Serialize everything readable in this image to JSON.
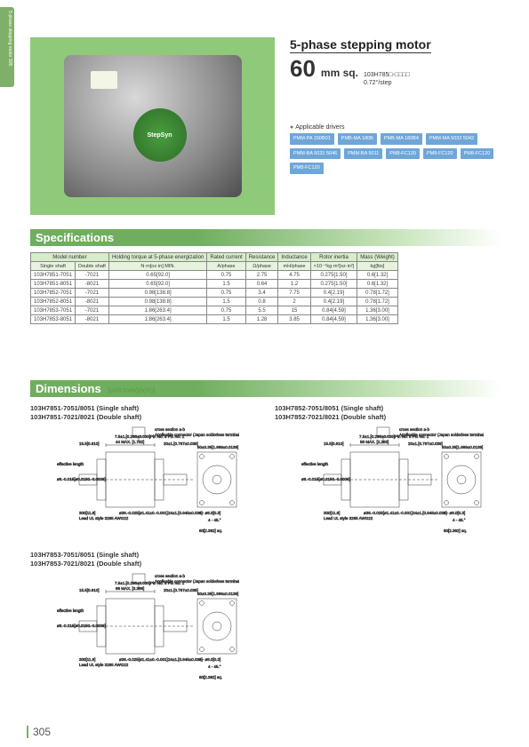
{
  "sideTab": "5-phase stepping motor 305",
  "title": {
    "line1": "5-phase stepping motor",
    "size": "60",
    "unit": "mm sq.",
    "model": "103H785□-□□□□",
    "step": "0.72°/step"
  },
  "drivers": {
    "label": "Applicable drivers",
    "chips": [
      "PMM-PA 150B01",
      "PMB-MA 180B",
      "PMB-MA 180B4",
      "PMM-MA 5032 5042",
      "PMM-BA 5031 5046",
      "PMM-BA 5011",
      "PM8-FC120",
      "PM8-FC120",
      "PM8-FC120",
      "PM8-FC120"
    ]
  },
  "specTable": {
    "head1": [
      "Model number",
      "Holding torque at 5-phase energization",
      "Rated current",
      "Resistance",
      "Inductance",
      "Rotor inertia",
      "Mass (Weight)"
    ],
    "head2": [
      "Single shaft",
      "Double shaft",
      "N·m[oz·in] MIN.",
      "A/phase",
      "Ω/phase",
      "mH/phase",
      "×10⁻⁴kg·m²[oz·in²]",
      "kg[lbs]"
    ],
    "rows": [
      [
        "103H7851-7051",
        "-7021",
        "0.65[92.0]",
        "0.75",
        "2.75",
        "4.75",
        "0.275[1.50]",
        "0.6[1.32]"
      ],
      [
        "103H7851-8051",
        "-8021",
        "0.65[92.0]",
        "1.5",
        "0.64",
        "1.2",
        "0.275[1.50]",
        "0.6[1.32]"
      ],
      [
        "103H7852-7051",
        "-7021",
        "0.98[138.8]",
        "0.75",
        "3.4",
        "7.75",
        "0.4[2.19]",
        "0.78[1.72]"
      ],
      [
        "103H7852-8051",
        "-8021",
        "0.98[138.8]",
        "1.5",
        "0.8",
        "2",
        "0.4[2.19]",
        "0.78[1.72]"
      ],
      [
        "103H7853-7051",
        "-7021",
        "1.86[263.4]",
        "0.75",
        "5.5",
        "15",
        "0.84[4.59]",
        "1.36[3.00]"
      ],
      [
        "103H7853-8051",
        "-8021",
        "1.86[263.4]",
        "1.5",
        "1.28",
        "3.85",
        "0.84[4.59]",
        "1.36[3.00]"
      ]
    ]
  },
  "dims": {
    "unitLabel": "[unit:mm(inch)]",
    "groups": [
      {
        "title1": "103H7851-7051/8051 (Single shaft)",
        "title2": "103H7851-7021/8021 (Double shaft)"
      },
      {
        "title1": "103H7852-7051/8051 (Single shaft)",
        "title2": "103H7852-7021/8021 (Double shaft)"
      },
      {
        "title1": "103H7853-7051/8051 (Single shaft)",
        "title2": "103H7853-7021/8021 (Double shaft)"
      }
    ],
    "connectorNote": "Applicable connector (Japan solderless terminals) housing : XHP-5 contact : SXH-21F-P1.1",
    "labels": {
      "sq60": "60[2.362] sq.",
      "ref50": "50±0.35[1.969±0.0139]",
      "s15": "15.5[0.610]",
      "s7": "7.5±1.[0.295±0.039]",
      "pin": "Pin No. 5 Pin No. 1",
      "cross": "cross section a·b",
      "shaft": "ø8.-0.015[ø0.3150.-0.0006]",
      "lead": "Lead UL style 3265 AWG22",
      "effLen": "effective length",
      "dia36": "ø36.-0.025[ø1.41±0.-0.001]",
      "le20": "20±1.[0.787±0.039]",
      "le24": "24±1.[0.945±0.039]",
      "L44": "44 MAX. [1.732]",
      "L58": "58 MAX. [2.283]",
      "L86": "86 MAX. [3.386]",
      "hole": "4 - ø8.0[0.3]",
      "s45": "4 - 45.°"
    }
  },
  "pageNum": "305",
  "specHead": "Specifications",
  "dimsHead": "Dimensions"
}
